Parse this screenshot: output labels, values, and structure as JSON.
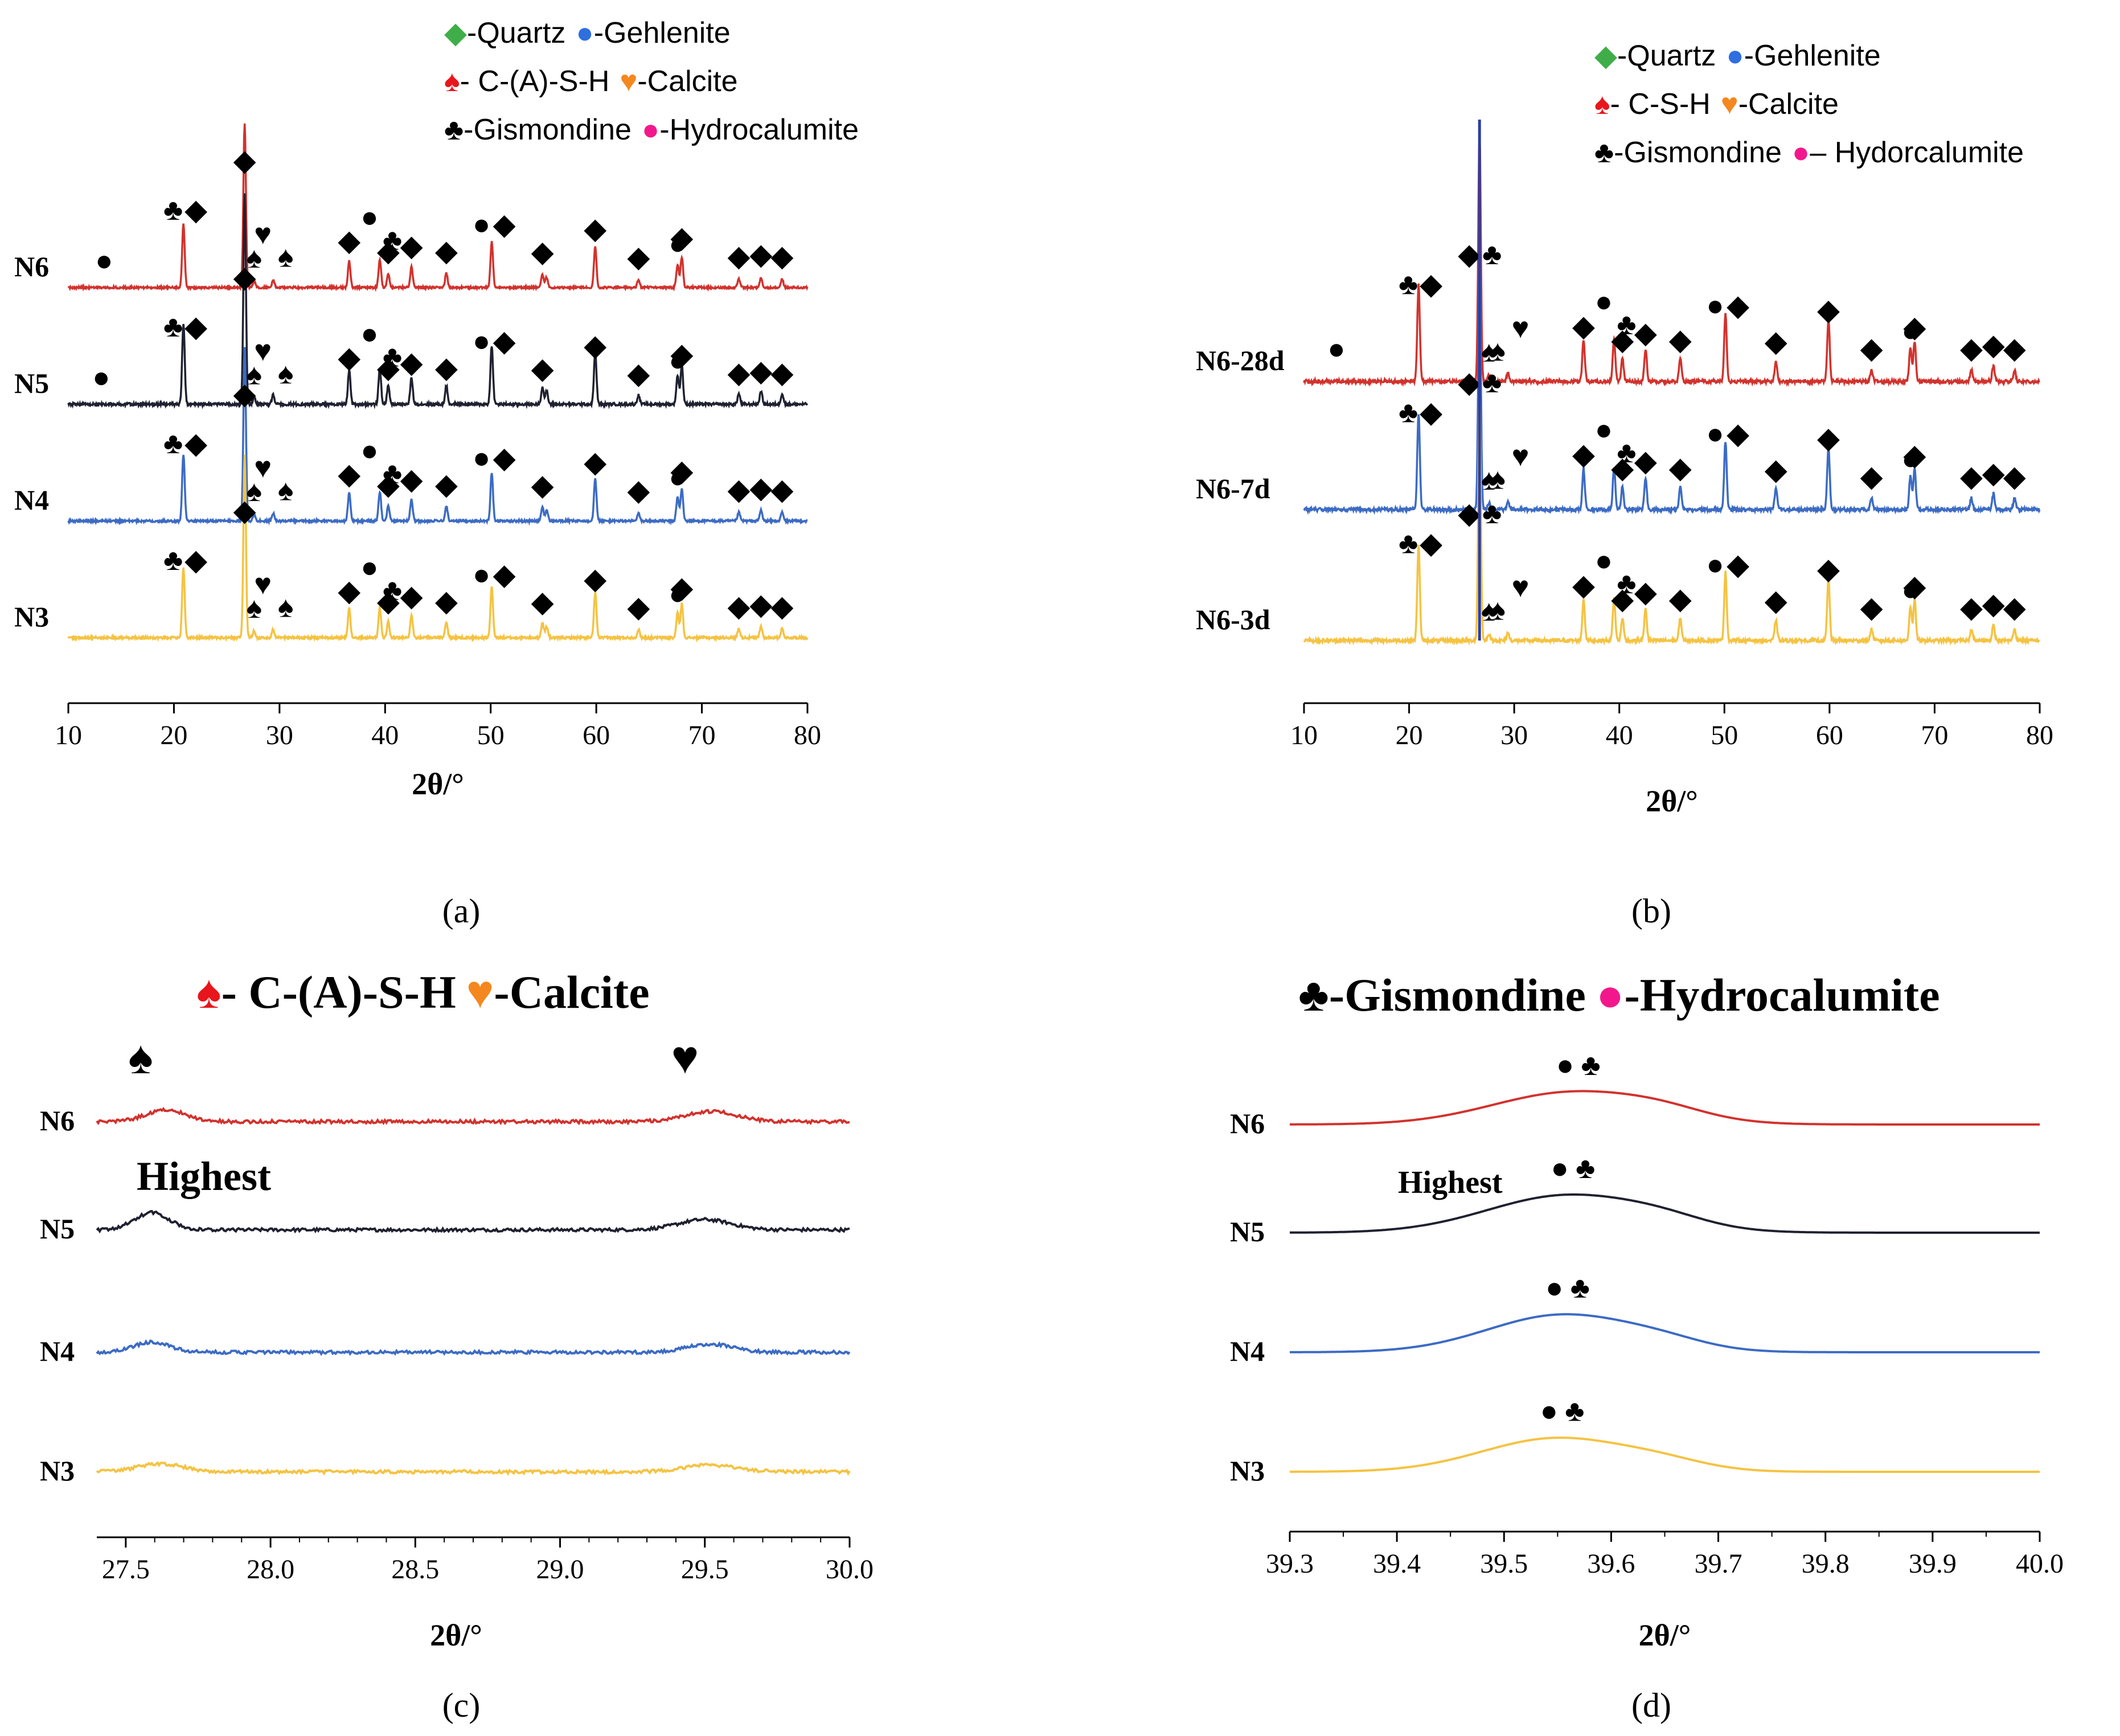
{
  "figure_title": "",
  "colors": {
    "N6": "#d2322d",
    "N5": "#1f2130",
    "N4": "#3c6bc4",
    "N3": "#f5c342",
    "N6_28d": "#d2322d",
    "N6_7d": "#3c6bc4",
    "N6_3d": "#f5c342",
    "quartz": "#3fae49",
    "gehlenite": "#2f6fe0",
    "csh": "#e8161c",
    "calcite": "#f5871f",
    "gismondine": "#000000",
    "hydrocalumite": "#f2188c",
    "peak_line": "#2c3fa0"
  },
  "icons": {
    "quartz": "green-diamond-icon",
    "gehlenite": "blue-dot-icon",
    "csh": "red-spade-icon",
    "calcite": "orange-heart-icon",
    "gismondine": "black-club-icon",
    "hydrocalumite": "pink-dot-icon"
  },
  "chart_data": [
    {
      "panel": "(a)",
      "type": "line",
      "xlabel": "2θ/°",
      "ylabel": "",
      "xlim": [
        10,
        80
      ],
      "xticks": [
        10,
        20,
        30,
        40,
        50,
        60,
        70,
        80
      ],
      "legend": [
        [
          "◆",
          "-Quartz",
          "●",
          "-Gehlenite"
        ],
        [
          "♠",
          "- C-(A)-S-H",
          "♥",
          "-Calcite"
        ],
        [
          "♣",
          "-Gismondine",
          "●",
          "-Hydrocalumite"
        ]
      ],
      "series": [
        {
          "name": "N6",
          "label": "N6"
        },
        {
          "name": "N5",
          "label": "N5"
        },
        {
          "name": "N4",
          "label": "N4"
        },
        {
          "name": "N3",
          "label": "N3"
        }
      ],
      "peaks": [
        {
          "x": 20.9,
          "h": 0.62,
          "phases": [
            "gismondine",
            "quartz"
          ]
        },
        {
          "x": 26.7,
          "h": 1.6,
          "phases": [
            "quartz"
          ]
        },
        {
          "x": 27.6,
          "h": 0.06,
          "phases": [
            "csh"
          ]
        },
        {
          "x": 29.4,
          "h": 0.07,
          "phases": [
            "calcite",
            "csh"
          ]
        },
        {
          "x": 36.6,
          "h": 0.26,
          "phases": [
            "quartz"
          ]
        },
        {
          "x": 39.5,
          "h": 0.27,
          "phases": [
            "hydrocalumite",
            "gismondine"
          ]
        },
        {
          "x": 40.3,
          "h": 0.14,
          "phases": [
            "quartz"
          ]
        },
        {
          "x": 42.5,
          "h": 0.2,
          "phases": [
            "quartz"
          ]
        },
        {
          "x": 45.8,
          "h": 0.14,
          "phases": [
            "quartz"
          ]
        },
        {
          "x": 50.1,
          "h": 0.45,
          "phases": [
            "gehlenite",
            "quartz"
          ]
        },
        {
          "x": 54.9,
          "h": 0.13,
          "phases": [
            "quartz"
          ]
        },
        {
          "x": 55.3,
          "h": 0.1,
          "phases": []
        },
        {
          "x": 59.9,
          "h": 0.4,
          "phases": [
            "quartz"
          ]
        },
        {
          "x": 64.0,
          "h": 0.07,
          "phases": [
            "quartz"
          ]
        },
        {
          "x": 67.7,
          "h": 0.22,
          "phases": [
            "gehlenite"
          ]
        },
        {
          "x": 68.1,
          "h": 0.3,
          "phases": [
            "quartz"
          ]
        },
        {
          "x": 73.5,
          "h": 0.08,
          "phases": [
            "quartz"
          ]
        },
        {
          "x": 75.6,
          "h": 0.1,
          "phases": [
            "quartz"
          ]
        },
        {
          "x": 77.6,
          "h": 0.08,
          "phases": [
            "quartz"
          ]
        }
      ],
      "low_angle_marker": {
        "x": 11.5,
        "phase": "hydrocalumite"
      }
    },
    {
      "panel": "(b)",
      "type": "line",
      "xlabel": "2θ/°",
      "ylabel": "",
      "xlim": [
        10,
        80
      ],
      "xticks": [
        10,
        20,
        30,
        40,
        50,
        60,
        70,
        80
      ],
      "legend": [
        [
          "◆",
          "-Quartz",
          "●",
          "-Gehlenite"
        ],
        [
          "♠",
          "- C-S-H",
          "♥",
          "-Calcite"
        ],
        [
          "♣",
          "-Gismondine",
          "●",
          "– Hydorcalumite"
        ]
      ],
      "series": [
        {
          "name": "N6-28d",
          "label": "N6-28d"
        },
        {
          "name": "N6-7d",
          "label": "N6-7d"
        },
        {
          "name": "N6-3d",
          "label": "N6-3d"
        }
      ],
      "peaks": [
        {
          "x": 20.9,
          "h": 0.85,
          "phases": [
            "gismondine",
            "quartz"
          ]
        },
        {
          "x": 26.7,
          "h": 2.2,
          "phases": [
            "quartz",
            "gismondine"
          ]
        },
        {
          "x": 27.6,
          "h": 0.06,
          "phases": [
            "csh"
          ]
        },
        {
          "x": 29.4,
          "h": 0.07,
          "phases": [
            "csh",
            "calcite"
          ]
        },
        {
          "x": 36.6,
          "h": 0.36,
          "phases": [
            "quartz"
          ]
        },
        {
          "x": 39.5,
          "h": 0.38,
          "phases": [
            "hydrocalumite",
            "gismondine"
          ]
        },
        {
          "x": 40.3,
          "h": 0.2,
          "phases": [
            "quartz"
          ]
        },
        {
          "x": 42.5,
          "h": 0.28,
          "phases": [
            "quartz"
          ]
        },
        {
          "x": 45.8,
          "h": 0.2,
          "phases": [
            "quartz"
          ]
        },
        {
          "x": 50.1,
          "h": 0.6,
          "phases": [
            "gehlenite",
            "quartz"
          ]
        },
        {
          "x": 54.9,
          "h": 0.18,
          "phases": [
            "quartz"
          ]
        },
        {
          "x": 59.9,
          "h": 0.55,
          "phases": [
            "quartz"
          ]
        },
        {
          "x": 64.0,
          "h": 0.1,
          "phases": [
            "quartz"
          ]
        },
        {
          "x": 67.7,
          "h": 0.3,
          "phases": [
            "gehlenite"
          ]
        },
        {
          "x": 68.1,
          "h": 0.35,
          "phases": [
            "quartz"
          ]
        },
        {
          "x": 73.5,
          "h": 0.1,
          "phases": [
            "quartz"
          ]
        },
        {
          "x": 75.6,
          "h": 0.14,
          "phases": [
            "quartz"
          ]
        },
        {
          "x": 77.6,
          "h": 0.1,
          "phases": [
            "quartz"
          ]
        }
      ],
      "low_angle_marker": {
        "x": 12.0,
        "phase": "hydrocalumite"
      }
    },
    {
      "panel": "(c)",
      "type": "line",
      "xlabel": "2θ/°",
      "ylabel": "",
      "xlim": [
        27.4,
        30.0
      ],
      "xticks": [
        27.5,
        28.0,
        28.5,
        29.0,
        29.5,
        30.0
      ],
      "xtick_labels": [
        "27.5",
        "28.0",
        "28.5",
        "29.0",
        "29.5",
        "30.0"
      ],
      "legend_line": [
        "♠",
        "- C-(A)-S-H",
        "♥",
        "-Calcite"
      ],
      "annotation": "Highest",
      "series": [
        {
          "name": "N6",
          "label": "N6",
          "peaks": [
            {
              "x": 27.64,
              "h": 0.5,
              "w": 0.07
            },
            {
              "x": 29.52,
              "h": 0.45,
              "w": 0.09
            }
          ]
        },
        {
          "name": "N5",
          "label": "N5",
          "peaks": [
            {
              "x": 27.59,
              "h": 0.75,
              "w": 0.06
            },
            {
              "x": 29.5,
              "h": 0.45,
              "w": 0.09
            }
          ]
        },
        {
          "name": "N4",
          "label": "N4",
          "peaks": [
            {
              "x": 27.59,
              "h": 0.45,
              "w": 0.06
            },
            {
              "x": 29.52,
              "h": 0.35,
              "w": 0.08
            }
          ]
        },
        {
          "name": "N3",
          "label": "N3",
          "peaks": [
            {
              "x": 27.62,
              "h": 0.35,
              "w": 0.08
            },
            {
              "x": 29.52,
              "h": 0.3,
              "w": 0.09
            }
          ]
        }
      ],
      "markers": [
        {
          "x": 27.64,
          "phase": "csh"
        },
        {
          "x": 29.52,
          "phase": "calcite"
        }
      ]
    },
    {
      "panel": "(d)",
      "type": "line",
      "xlabel": "2θ/°",
      "ylabel": "",
      "xlim": [
        39.3,
        40.0
      ],
      "xticks": [
        39.3,
        39.4,
        39.5,
        39.6,
        39.7,
        39.8,
        39.9,
        40.0
      ],
      "xtick_labels": [
        "39.3",
        "39.4",
        "39.5",
        "39.6",
        "39.7",
        "39.8",
        "39.9",
        "40.0"
      ],
      "legend_line": [
        "♣",
        "-Gismondine",
        "●",
        "-Hydrocalumite"
      ],
      "annotation": "Highest",
      "series": [
        {
          "name": "N6",
          "label": "N6",
          "peak": {
            "x": 39.565,
            "h": 2.6,
            "w": 0.075
          }
        },
        {
          "name": "N5",
          "label": "N5",
          "peak": {
            "x": 39.56,
            "h": 3.0,
            "w": 0.075
          }
        },
        {
          "name": "N4",
          "label": "N4",
          "peak": {
            "x": 39.555,
            "h": 3.0,
            "w": 0.07
          }
        },
        {
          "name": "N3",
          "label": "N3",
          "peak": {
            "x": 39.55,
            "h": 2.7,
            "w": 0.07
          }
        }
      ]
    }
  ]
}
